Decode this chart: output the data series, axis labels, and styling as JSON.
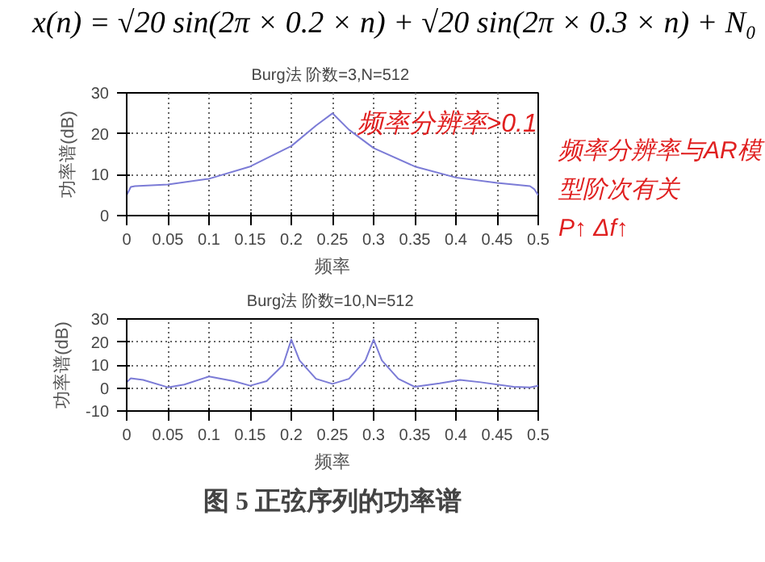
{
  "chart_data": [
    {
      "type": "line",
      "title": "Burg法  阶数=3,N=512",
      "subtitle": "x(n) = √20 sin(2π × 0.2 × n) + √20 sin(2π × 0.3 × n) + N₀",
      "xlabel": "频率",
      "ylabel": "功率谱(dB)",
      "x": [
        0,
        0.005,
        0.01,
        0.05,
        0.1,
        0.15,
        0.2,
        0.23,
        0.25,
        0.27,
        0.3,
        0.35,
        0.4,
        0.45,
        0.49,
        0.495,
        0.5
      ],
      "series": [
        {
          "color": "#7b7bd6",
          "values": [
            5,
            7,
            7.2,
            7.6,
            9,
            12,
            17,
            22,
            25,
            21,
            16.5,
            12,
            9.3,
            8,
            7.2,
            6.5,
            5
          ]
        }
      ],
      "xlim": [
        0,
        0.5
      ],
      "ylim": [
        0,
        30
      ],
      "xticks": [
        0,
        0.05,
        0.1,
        0.15,
        0.2,
        0.25,
        0.3,
        0.35,
        0.4,
        0.45,
        0.5
      ],
      "yticks": [
        0,
        10,
        20,
        30
      ],
      "grid": true,
      "line_style": "solid",
      "annotations": [
        {
          "text": "频率分辨率>0.1",
          "x": 0.28,
          "y": 19
        },
        "频率分辨率与AR模型阶次有关",
        "P↑ Δf↑"
      ]
    },
    {
      "type": "line",
      "title": "Burg法  阶数=10,N=512",
      "xlabel": "频率",
      "ylabel": "功率谱(dB)",
      "x": [
        0,
        0.005,
        0.02,
        0.05,
        0.07,
        0.1,
        0.13,
        0.15,
        0.17,
        0.19,
        0.2,
        0.21,
        0.23,
        0.25,
        0.27,
        0.29,
        0.3,
        0.31,
        0.33,
        0.35,
        0.38,
        0.405,
        0.43,
        0.47,
        0.49,
        0.5
      ],
      "series": [
        {
          "color": "#7b7bd6",
          "values": [
            2.5,
            4.2,
            3.5,
            0.3,
            1.5,
            5,
            3,
            1,
            3,
            10,
            21,
            12,
            4,
            1.8,
            4,
            12,
            21,
            12,
            4,
            0.5,
            2,
            3.5,
            2.5,
            0.5,
            0.3,
            1
          ]
        }
      ],
      "xlim": [
        0,
        0.5
      ],
      "ylim": [
        -10,
        30
      ],
      "xticks": [
        0,
        0.05,
        0.1,
        0.15,
        0.2,
        0.25,
        0.3,
        0.35,
        0.4,
        0.45,
        0.5
      ],
      "yticks": [
        -10,
        0,
        10,
        20,
        30
      ],
      "grid": true,
      "line_style": "solid",
      "annotations": [
        "图 5 正弦序列的功率谱"
      ]
    }
  ]
}
